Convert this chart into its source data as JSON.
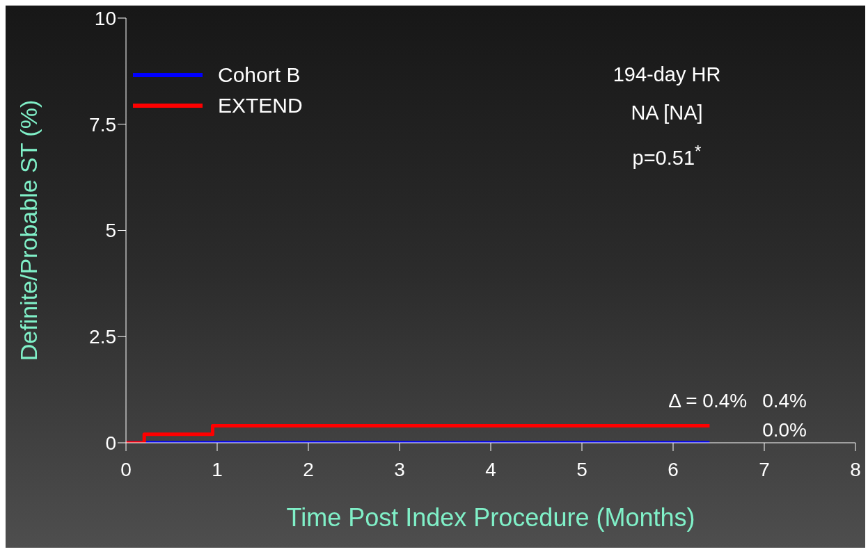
{
  "chart_data": {
    "type": "step",
    "xlabel": "Time Post Index Procedure (Months)",
    "ylabel": "Definite/Probable ST (%)",
    "xlim": [
      0,
      8
    ],
    "xticks": [
      0,
      1,
      2,
      3,
      4,
      5,
      6,
      7,
      8
    ],
    "ylim": [
      0,
      10
    ],
    "yticks": [
      0,
      2.5,
      5,
      7.5,
      10
    ],
    "grid": false,
    "legend": "top left",
    "marker": "none",
    "line_style": "solid",
    "series": [
      {
        "name": "Cohort B",
        "color": "#0000ff",
        "x": [
          0,
          6.4
        ],
        "values": [
          0,
          0
        ]
      },
      {
        "name": "EXTEND",
        "color": "#ff0000",
        "x": [
          0,
          0.2,
          0.95,
          6.4
        ],
        "values": [
          0,
          0.2,
          0.4,
          0.4
        ]
      }
    ],
    "annotations": [
      "194-day HR",
      "NA [NA]",
      "p=0.51$^{*}$",
      "Δ = 0.4%",
      "0.4%",
      "0.0%"
    ]
  }
}
